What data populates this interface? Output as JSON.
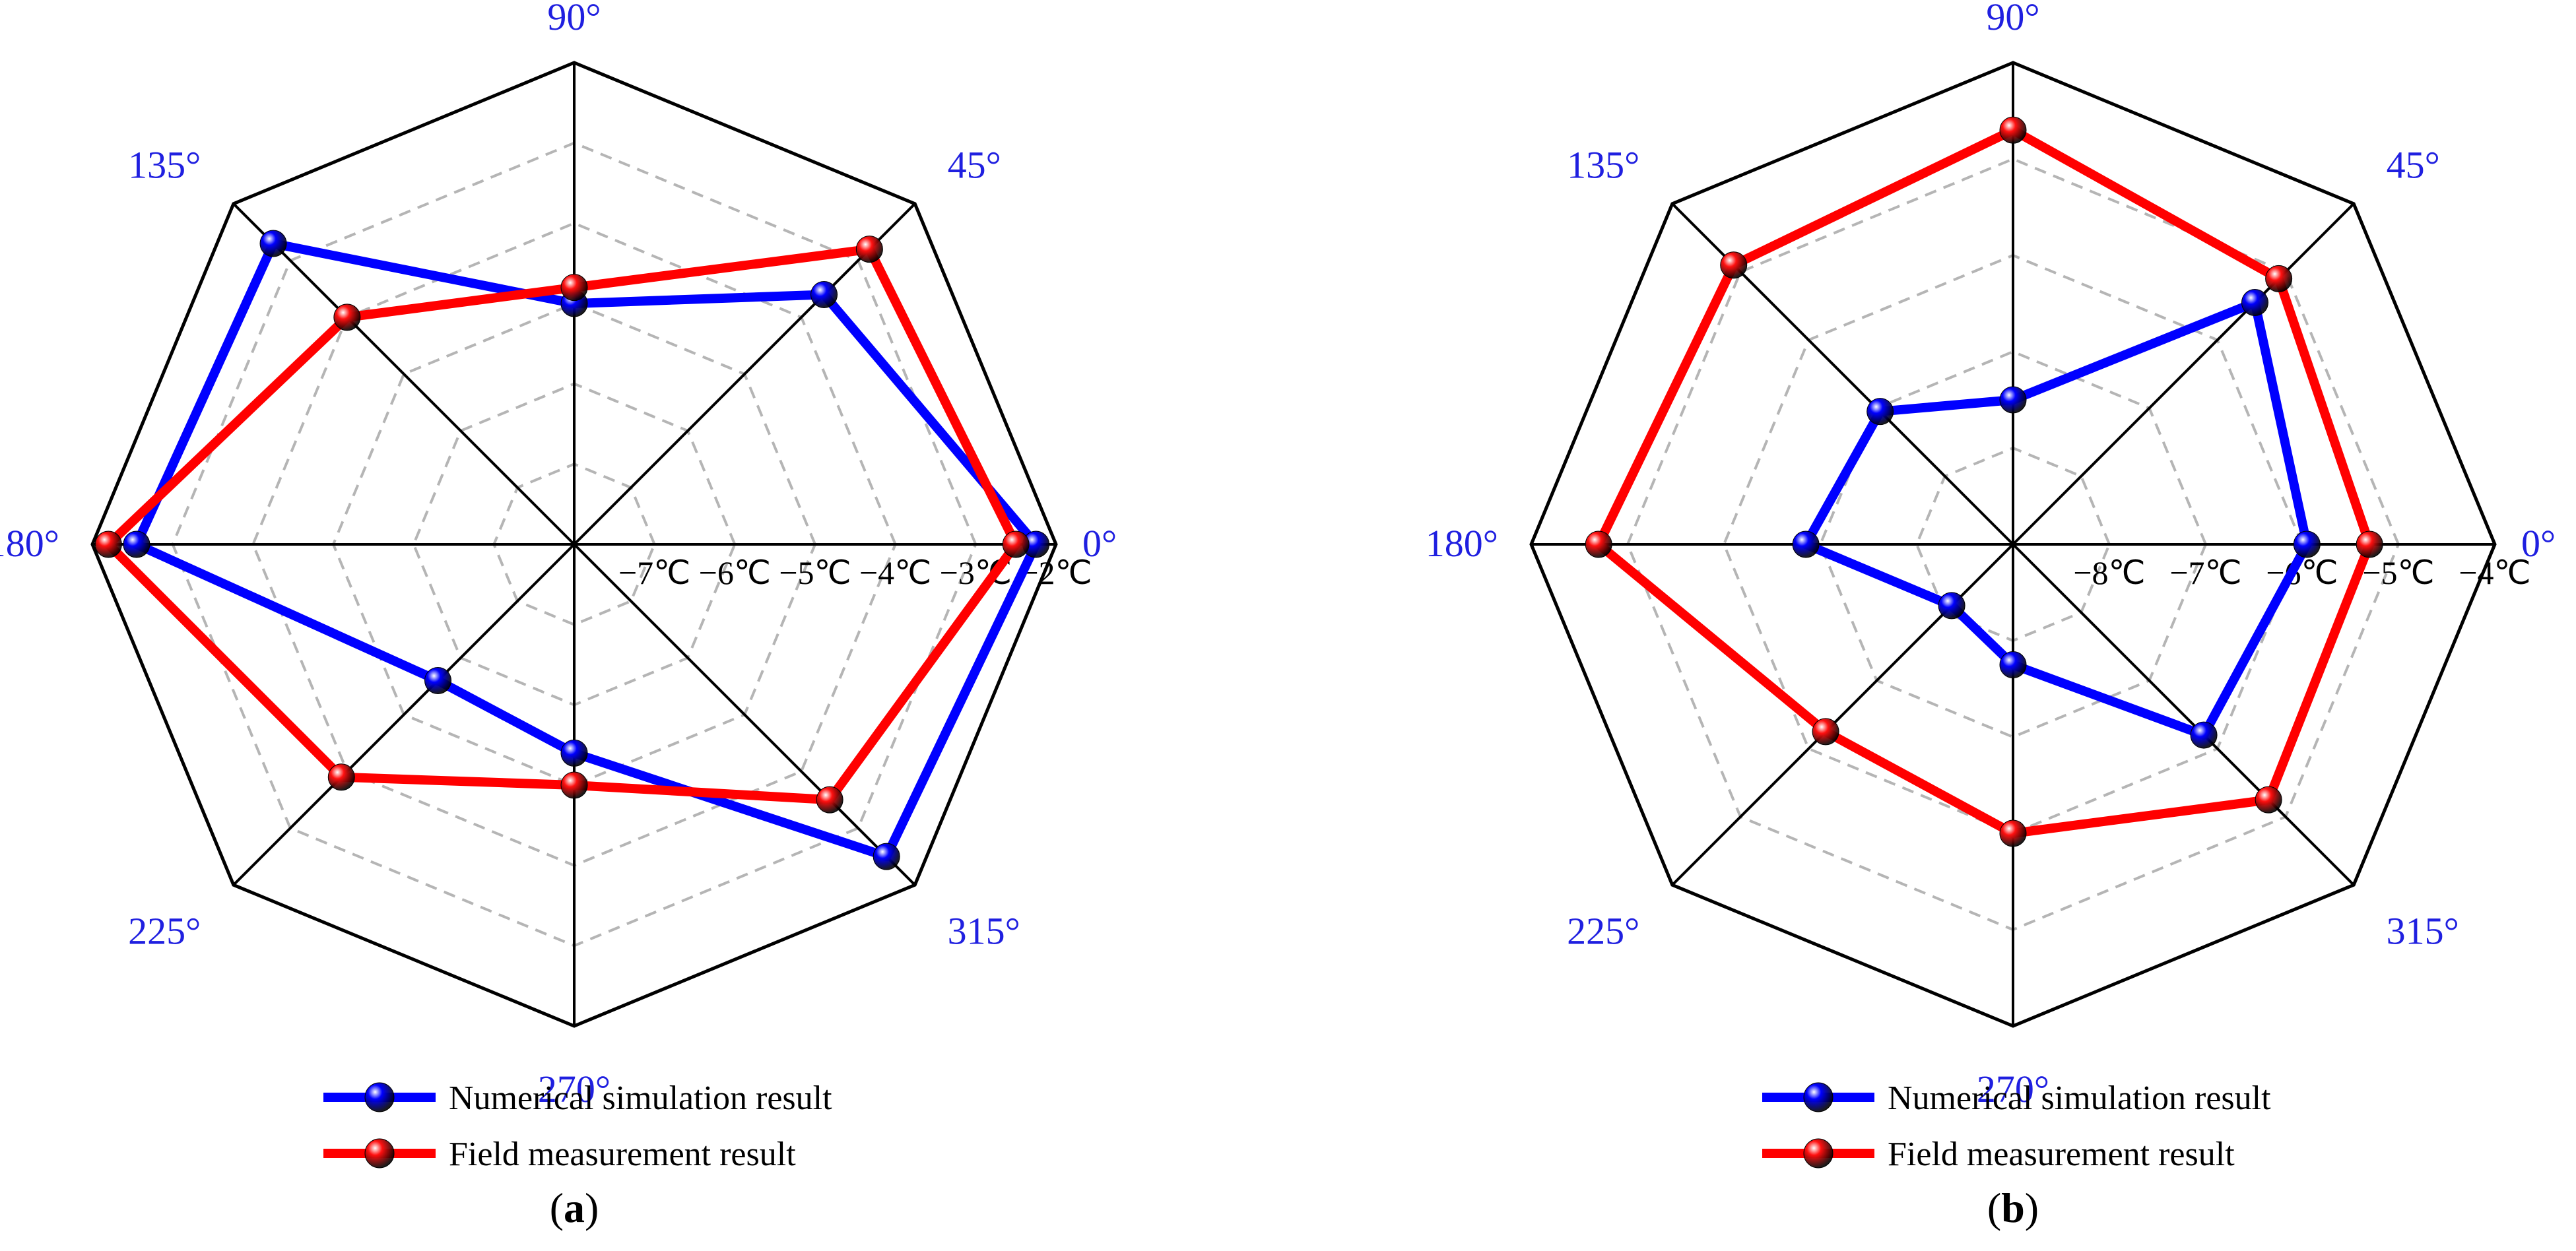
{
  "chart_data": [
    {
      "type": "radar",
      "panel_label": {
        "open": "(",
        "letter": "a",
        "close": ")"
      },
      "angles": [
        "0°",
        "45°",
        "90°",
        "135°",
        "180°",
        "225°",
        "270°",
        "315°"
      ],
      "radial_ticks": [
        "−7℃",
        "−6℃",
        "−5℃",
        "−4℃",
        "−3℃",
        "−2℃"
      ],
      "radial_range": [
        -8,
        -2
      ],
      "grid": true,
      "legend_position": "bottom",
      "series": [
        {
          "name": "Numerical simulation result",
          "color": "#0000ff",
          "values": [
            -2.25,
            -3.6,
            -5.0,
            -2.7,
            -2.55,
            -5.6,
            -5.4,
            -2.5
          ]
        },
        {
          "name": "Field measurement result",
          "color": "#ff0000",
          "values": [
            -2.5,
            -2.8,
            -4.8,
            -4.0,
            -2.2,
            -3.9,
            -5.0,
            -3.5
          ]
        }
      ]
    },
    {
      "type": "radar",
      "panel_label": {
        "open": "(",
        "letter": "b",
        "close": ")"
      },
      "angles": [
        "0°",
        "45°",
        "90°",
        "135°",
        "180°",
        "225°",
        "270°",
        "315°"
      ],
      "radial_ticks": [
        "−8℃",
        "−7℃",
        "−6℃",
        "−5℃",
        "−4℃"
      ],
      "radial_range": [
        -9,
        -4
      ],
      "grid": true,
      "legend_position": "bottom",
      "series": [
        {
          "name": "Numerical simulation result",
          "color": "#0000ff",
          "values": [
            -5.95,
            -5.45,
            -7.5,
            -7.05,
            -6.85,
            -8.1,
            -7.75,
            -6.2
          ]
        },
        {
          "name": "Field measurement result",
          "color": "#ff0000",
          "values": [
            -5.3,
            -5.1,
            -4.7,
            -4.9,
            -4.7,
            -6.25,
            -6.0,
            -5.25
          ]
        }
      ]
    }
  ]
}
